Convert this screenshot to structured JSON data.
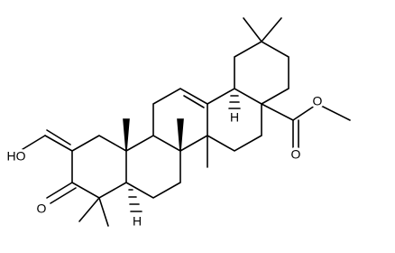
{
  "atom_labels": [
    "HO",
    "O",
    "O",
    "O",
    "H",
    "H"
  ]
}
